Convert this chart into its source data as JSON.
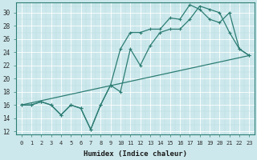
{
  "xlabel": "Humidex (Indice chaleur)",
  "bg_color": "#cce8ec",
  "line_color": "#2d7d74",
  "grid_color": "#b0d8de",
  "xlim": [
    -0.5,
    23.5
  ],
  "ylim": [
    11.5,
    31.5
  ],
  "xticks": [
    0,
    1,
    2,
    3,
    4,
    5,
    6,
    7,
    8,
    9,
    10,
    11,
    12,
    13,
    14,
    15,
    16,
    17,
    18,
    19,
    20,
    21,
    22,
    23
  ],
  "yticks": [
    12,
    14,
    16,
    18,
    20,
    22,
    24,
    26,
    28,
    30
  ],
  "line1_x": [
    0,
    1,
    2,
    3,
    4,
    5,
    6,
    7,
    8,
    9,
    10,
    11,
    12,
    13,
    14,
    15,
    16,
    17,
    18,
    19,
    20,
    21,
    22,
    23
  ],
  "line1_y": [
    16,
    16,
    16.5,
    16,
    14.5,
    16,
    15.5,
    12.3,
    16,
    19,
    18,
    24.5,
    22,
    25,
    27,
    27.5,
    27.5,
    29,
    31,
    30.5,
    30,
    27,
    24.5,
    23.5
  ],
  "line2_x": [
    0,
    1,
    2,
    3,
    4,
    5,
    6,
    7,
    8,
    9,
    10,
    11,
    12,
    13,
    14,
    15,
    16,
    17,
    18,
    19,
    20,
    21,
    22,
    23
  ],
  "line2_y": [
    16,
    16,
    16.5,
    16,
    14.5,
    16,
    15.5,
    12.3,
    16,
    19,
    24.5,
    27,
    27,
    27.5,
    27.5,
    29.2,
    29,
    31.2,
    30.5,
    29,
    28.5,
    30,
    24.5,
    23.5
  ],
  "line3_x": [
    0,
    23
  ],
  "line3_y": [
    16,
    23.5
  ],
  "marker_size": 2.5,
  "linewidth": 0.9
}
